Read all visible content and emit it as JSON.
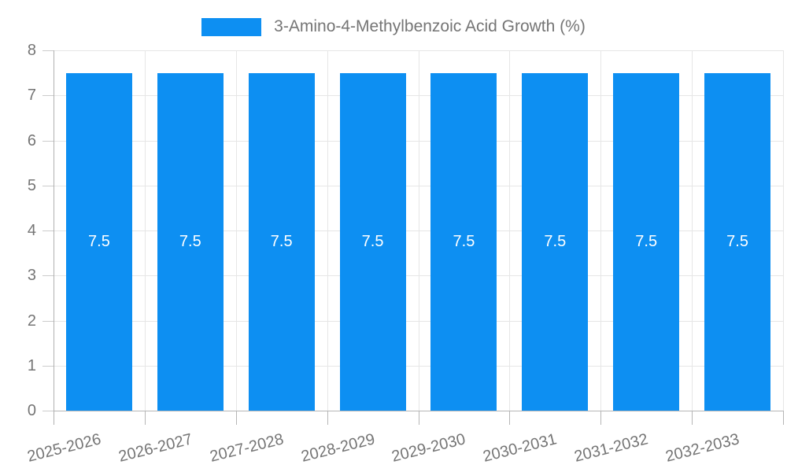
{
  "legend": {
    "label": "3-Amino-4-Methylbenzoic Acid Growth (%)"
  },
  "chart_data": {
    "type": "bar",
    "title": "3-Amino-4-Methylbenzoic Acid Growth (%)",
    "categories": [
      "2025-2026",
      "2026-2027",
      "2027-2028",
      "2028-2029",
      "2029-2030",
      "2030-2031",
      "2031-2032",
      "2032-2033"
    ],
    "values": [
      7.5,
      7.5,
      7.5,
      7.5,
      7.5,
      7.5,
      7.5,
      7.5
    ],
    "bar_value_labels": [
      "7.5",
      "7.5",
      "7.5",
      "7.5",
      "7.5",
      "7.5",
      "7.5",
      "7.5"
    ],
    "xlabel": "",
    "ylabel": "",
    "ylim": [
      0,
      8
    ],
    "yticks": [
      0,
      1,
      2,
      3,
      4,
      5,
      6,
      7,
      8
    ],
    "grid": true,
    "legend_position": "top",
    "colors": {
      "bar": "#0d8ff2",
      "bar_label_text": "#ffffff",
      "axis_text": "#757575",
      "gridline": "#e6e6e6",
      "axis_line": "#b0b0b0"
    }
  }
}
